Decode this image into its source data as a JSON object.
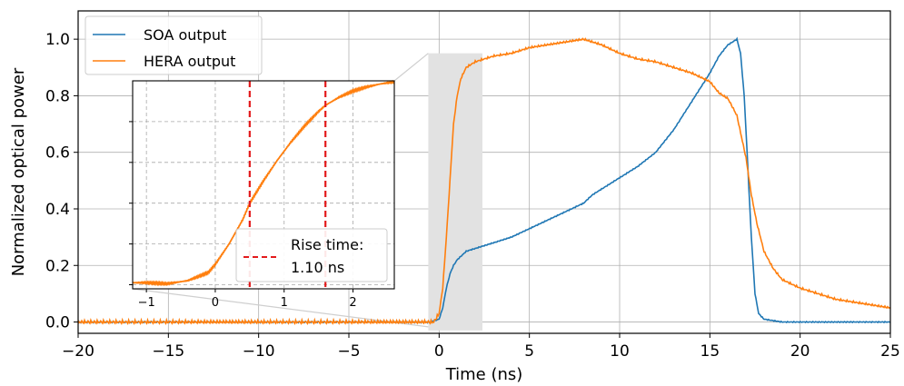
{
  "chart_data": [
    {
      "type": "line",
      "xlabel": "Time (ns)",
      "ylabel": "Normalized optical power",
      "xlim": [
        -20,
        25
      ],
      "ylim": [
        -0.04,
        1.1
      ],
      "x_ticks": [
        -20,
        -15,
        -10,
        -5,
        0,
        5,
        10,
        15,
        20,
        25
      ],
      "x_tick_labels": [
        "−20",
        "−15",
        "−10",
        "−5",
        "0",
        "5",
        "10",
        "15",
        "20",
        "25"
      ],
      "y_ticks": [
        0.0,
        0.2,
        0.4,
        0.6,
        0.8,
        1.0
      ],
      "y_tick_labels": [
        "0.0",
        "0.2",
        "0.4",
        "0.6",
        "0.8",
        "1.0"
      ],
      "grid": true,
      "legend_position": "top-left",
      "highlight_region": {
        "x": [
          -0.6,
          2.4
        ],
        "y": [
          -0.03,
          0.95
        ],
        "color": "#e2e2e2"
      },
      "series": [
        {
          "name": "SOA output",
          "color": "#1f77b4",
          "points": [
            [
              -20,
              0
            ],
            [
              -1,
              0
            ],
            [
              -0.5,
              0
            ],
            [
              0,
              0.01
            ],
            [
              0.2,
              0.05
            ],
            [
              0.4,
              0.12
            ],
            [
              0.6,
              0.17
            ],
            [
              0.8,
              0.2
            ],
            [
              1,
              0.22
            ],
            [
              1.5,
              0.25
            ],
            [
              2,
              0.26
            ],
            [
              3,
              0.28
            ],
            [
              4,
              0.3
            ],
            [
              5,
              0.33
            ],
            [
              6,
              0.36
            ],
            [
              7,
              0.39
            ],
            [
              8,
              0.42
            ],
            [
              8.5,
              0.45
            ],
            [
              9,
              0.47
            ],
            [
              10,
              0.51
            ],
            [
              11,
              0.55
            ],
            [
              12,
              0.6
            ],
            [
              13,
              0.68
            ],
            [
              14,
              0.78
            ],
            [
              15,
              0.88
            ],
            [
              15.5,
              0.94
            ],
            [
              16,
              0.98
            ],
            [
              16.5,
              1.0
            ],
            [
              16.7,
              0.95
            ],
            [
              16.9,
              0.8
            ],
            [
              17.1,
              0.55
            ],
            [
              17.3,
              0.3
            ],
            [
              17.5,
              0.1
            ],
            [
              17.7,
              0.03
            ],
            [
              18,
              0.01
            ],
            [
              19,
              0.0
            ],
            [
              25,
              0.0
            ]
          ]
        },
        {
          "name": "HERA output",
          "color": "#ff7f0e",
          "points": [
            [
              -20,
              0
            ],
            [
              -1,
              0
            ],
            [
              -0.3,
              0
            ],
            [
              0,
              0.03
            ],
            [
              0.2,
              0.12
            ],
            [
              0.4,
              0.3
            ],
            [
              0.6,
              0.5
            ],
            [
              0.8,
              0.7
            ],
            [
              1,
              0.8
            ],
            [
              1.2,
              0.86
            ],
            [
              1.5,
              0.9
            ],
            [
              2,
              0.92
            ],
            [
              3,
              0.94
            ],
            [
              4,
              0.95
            ],
            [
              5,
              0.97
            ],
            [
              6,
              0.98
            ],
            [
              7,
              0.99
            ],
            [
              8,
              1.0
            ],
            [
              9,
              0.98
            ],
            [
              10,
              0.95
            ],
            [
              11,
              0.93
            ],
            [
              12,
              0.92
            ],
            [
              13,
              0.9
            ],
            [
              14,
              0.88
            ],
            [
              15,
              0.85
            ],
            [
              15.5,
              0.81
            ],
            [
              16,
              0.79
            ],
            [
              16.5,
              0.73
            ],
            [
              17,
              0.58
            ],
            [
              17.3,
              0.45
            ],
            [
              17.6,
              0.35
            ],
            [
              18,
              0.25
            ],
            [
              18.5,
              0.19
            ],
            [
              19,
              0.15
            ],
            [
              20,
              0.12
            ],
            [
              21,
              0.1
            ],
            [
              22,
              0.08
            ],
            [
              23,
              0.07
            ],
            [
              24,
              0.06
            ],
            [
              25,
              0.05
            ]
          ]
        }
      ]
    },
    {
      "type": "line",
      "xlim": [
        -1.2,
        2.6
      ],
      "ylim": [
        -0.02,
        1.0
      ],
      "x_ticks": [
        -1,
        0,
        1,
        2
      ],
      "x_tick_labels": [
        "−1",
        "0",
        "1",
        "2"
      ],
      "y_ticks": [
        0.0,
        0.2,
        0.4,
        0.6,
        0.8
      ],
      "grid": true,
      "legend_position": "bottom-right",
      "vlines": {
        "x": [
          0.5,
          1.6
        ],
        "color": "#e31a1c",
        "style": "dashed"
      },
      "legend_label": "Rise time:",
      "legend_label_2": "1.10 ns",
      "series": [
        {
          "name": "HERA output",
          "color": "#ff7f0e",
          "points": [
            [
              -1.2,
              0.01
            ],
            [
              -1,
              0.01
            ],
            [
              -0.7,
              0.005
            ],
            [
              -0.4,
              0.02
            ],
            [
              -0.1,
              0.06
            ],
            [
              0,
              0.1
            ],
            [
              0.2,
              0.2
            ],
            [
              0.4,
              0.32
            ],
            [
              0.5,
              0.4
            ],
            [
              0.7,
              0.51
            ],
            [
              0.9,
              0.61
            ],
            [
              1.1,
              0.7
            ],
            [
              1.3,
              0.78
            ],
            [
              1.5,
              0.85
            ],
            [
              1.6,
              0.88
            ],
            [
              1.8,
              0.92
            ],
            [
              2,
              0.95
            ],
            [
              2.2,
              0.97
            ],
            [
              2.4,
              0.985
            ],
            [
              2.6,
              0.995
            ]
          ]
        }
      ]
    }
  ]
}
